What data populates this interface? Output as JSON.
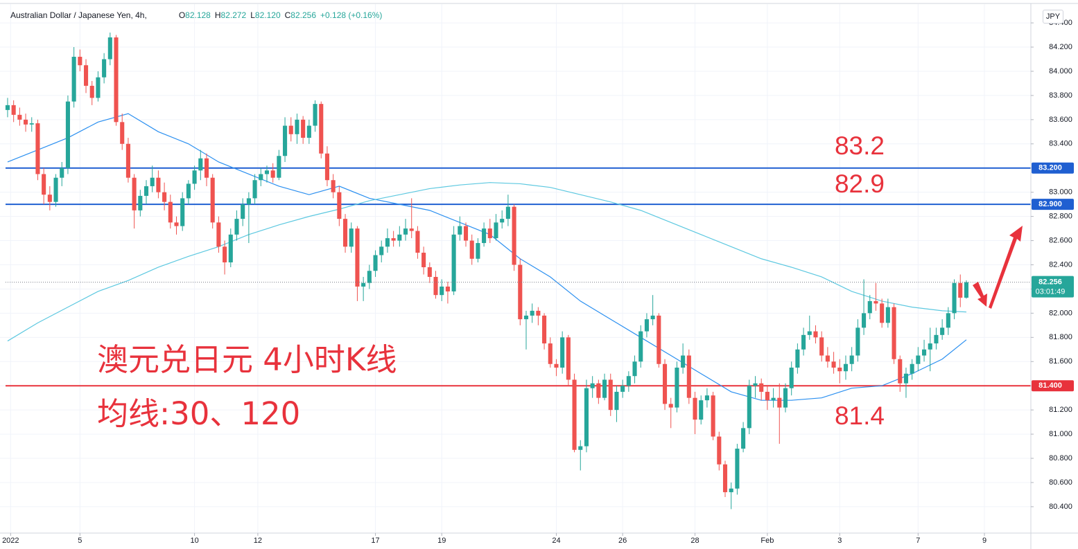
{
  "chart_data": {
    "type": "candlestick",
    "title": "Australian Dollar / Japanese Yen, 4h,",
    "ohlc_legend": [
      {
        "key": "O",
        "value": "82.128"
      },
      {
        "key": "H",
        "value": "82.272"
      },
      {
        "key": "L",
        "value": "82.120"
      },
      {
        "key": "C",
        "value": "82.256"
      }
    ],
    "change_label": "+0.128 (+0.16%)",
    "currency": "JPY",
    "up_color": "#26a69a",
    "down_color": "#ef5350",
    "ylim": [
      80.182,
      84.555
    ],
    "yticks": [
      {
        "value": 80.4,
        "label": "80.400"
      },
      {
        "value": 80.6,
        "label": "80.600"
      },
      {
        "value": 80.8,
        "label": "80.800"
      },
      {
        "value": 81.0,
        "label": "81.000"
      },
      {
        "value": 81.2,
        "label": "81.200"
      },
      {
        "value": 81.4,
        "label": "81.400"
      },
      {
        "value": 81.6,
        "label": "81.600"
      },
      {
        "value": 81.8,
        "label": "81.800"
      },
      {
        "value": 82.0,
        "label": "82.000"
      },
      {
        "value": 82.2,
        "label": "82.200"
      },
      {
        "value": 82.4,
        "label": "82.400"
      },
      {
        "value": 82.6,
        "label": "82.600"
      },
      {
        "value": 82.8,
        "label": "82.800"
      },
      {
        "value": 83.0,
        "label": "83.000"
      },
      {
        "value": 83.2,
        "label": "83.200"
      },
      {
        "value": 83.4,
        "label": "83.400"
      },
      {
        "value": 83.6,
        "label": "83.600"
      },
      {
        "value": 83.8,
        "label": "83.800"
      },
      {
        "value": 84.0,
        "label": "84.000"
      },
      {
        "value": 84.2,
        "label": "84.200"
      },
      {
        "value": 84.4,
        "label": "84.400"
      }
    ],
    "xlim": [
      -1.26,
      169.7
    ],
    "xticks": [
      {
        "value": 0.5,
        "label": "2022"
      },
      {
        "value": 12,
        "label": "5"
      },
      {
        "value": 31,
        "label": "10"
      },
      {
        "value": 41.5,
        "label": "12"
      },
      {
        "value": 61,
        "label": "17"
      },
      {
        "value": 72,
        "label": "19"
      },
      {
        "value": 91,
        "label": "24"
      },
      {
        "value": 102,
        "label": "26"
      },
      {
        "value": 114,
        "label": "28"
      },
      {
        "value": 126,
        "label": "Feb"
      },
      {
        "value": 138,
        "label": "3"
      },
      {
        "value": 151,
        "label": "7"
      },
      {
        "value": 162,
        "label": "9"
      }
    ],
    "grid": true,
    "ohlc": [
      [
        83.68,
        83.78,
        83.62,
        83.72
      ],
      [
        83.72,
        83.76,
        83.58,
        83.64
      ],
      [
        83.64,
        83.7,
        83.55,
        83.6
      ],
      [
        83.6,
        83.65,
        83.5,
        83.56
      ],
      [
        83.56,
        83.62,
        83.5,
        83.57
      ],
      [
        83.57,
        83.6,
        83.1,
        83.15
      ],
      [
        83.15,
        83.2,
        82.9,
        82.98
      ],
      [
        82.98,
        83.05,
        82.85,
        82.92
      ],
      [
        82.92,
        83.15,
        82.88,
        83.12
      ],
      [
        83.12,
        83.25,
        83.05,
        83.2
      ],
      [
        83.2,
        83.8,
        83.15,
        83.75
      ],
      [
        83.75,
        84.2,
        83.7,
        84.12
      ],
      [
        84.12,
        84.18,
        84.0,
        84.05
      ],
      [
        84.05,
        84.1,
        83.82,
        83.88
      ],
      [
        83.88,
        83.92,
        83.72,
        83.78
      ],
      [
        83.78,
        84.0,
        83.75,
        83.95
      ],
      [
        83.95,
        84.15,
        83.9,
        84.1
      ],
      [
        84.1,
        84.32,
        84.05,
        84.28
      ],
      [
        84.28,
        84.3,
        83.55,
        83.58
      ],
      [
        83.58,
        83.65,
        83.35,
        83.4
      ],
      [
        83.4,
        83.45,
        83.08,
        83.12
      ],
      [
        83.12,
        83.15,
        82.7,
        82.85
      ],
      [
        82.85,
        83.02,
        82.8,
        82.97
      ],
      [
        82.97,
        83.1,
        82.9,
        83.05
      ],
      [
        83.05,
        83.22,
        83.0,
        83.12
      ],
      [
        83.12,
        83.18,
        82.95,
        83.0
      ],
      [
        83.0,
        83.08,
        82.85,
        82.92
      ],
      [
        82.92,
        82.98,
        82.7,
        82.75
      ],
      [
        82.75,
        82.8,
        82.65,
        82.72
      ],
      [
        82.72,
        83.0,
        82.68,
        82.95
      ],
      [
        82.95,
        83.1,
        82.9,
        83.07
      ],
      [
        83.07,
        83.22,
        83.02,
        83.18
      ],
      [
        83.18,
        83.35,
        83.1,
        83.28
      ],
      [
        83.28,
        83.32,
        83.05,
        83.12
      ],
      [
        83.12,
        83.15,
        82.7,
        82.75
      ],
      [
        82.75,
        82.8,
        82.5,
        82.55
      ],
      [
        82.55,
        82.6,
        82.32,
        82.42
      ],
      [
        82.42,
        82.7,
        82.38,
        82.65
      ],
      [
        82.65,
        82.85,
        82.6,
        82.78
      ],
      [
        82.78,
        82.95,
        82.72,
        82.9
      ],
      [
        82.9,
        83.0,
        82.58,
        82.95
      ],
      [
        82.95,
        83.15,
        82.9,
        83.1
      ],
      [
        83.1,
        83.2,
        83.05,
        83.15
      ],
      [
        83.15,
        83.22,
        83.08,
        83.18
      ],
      [
        83.18,
        83.24,
        83.08,
        83.12
      ],
      [
        83.12,
        83.35,
        83.1,
        83.3
      ],
      [
        83.3,
        83.62,
        83.25,
        83.55
      ],
      [
        83.55,
        83.62,
        83.42,
        83.48
      ],
      [
        83.48,
        83.65,
        83.4,
        83.6
      ],
      [
        83.6,
        83.63,
        83.4,
        83.45
      ],
      [
        83.45,
        83.6,
        83.4,
        83.55
      ],
      [
        83.55,
        83.76,
        83.5,
        83.73
      ],
      [
        83.73,
        83.75,
        83.28,
        83.32
      ],
      [
        83.32,
        83.38,
        83.05,
        83.1
      ],
      [
        83.1,
        83.15,
        82.95,
        83.0
      ],
      [
        83.0,
        83.05,
        82.72,
        82.78
      ],
      [
        82.78,
        82.82,
        82.5,
        82.55
      ],
      [
        82.55,
        82.75,
        82.5,
        82.7
      ],
      [
        82.7,
        82.72,
        82.1,
        82.22
      ],
      [
        82.22,
        82.3,
        82.1,
        82.25
      ],
      [
        82.25,
        82.4,
        82.2,
        82.35
      ],
      [
        82.35,
        82.52,
        82.3,
        82.48
      ],
      [
        82.48,
        82.6,
        82.42,
        82.55
      ],
      [
        82.55,
        82.7,
        82.5,
        82.62
      ],
      [
        82.62,
        82.68,
        82.55,
        82.6
      ],
      [
        82.6,
        82.72,
        82.55,
        82.65
      ],
      [
        82.65,
        82.78,
        82.6,
        82.7
      ],
      [
        82.7,
        82.95,
        82.62,
        82.68
      ],
      [
        82.68,
        82.72,
        82.45,
        82.5
      ],
      [
        82.5,
        82.55,
        82.32,
        82.38
      ],
      [
        82.38,
        82.42,
        82.25,
        82.3
      ],
      [
        82.3,
        82.35,
        82.12,
        82.15
      ],
      [
        82.15,
        82.28,
        82.1,
        82.22
      ],
      [
        82.22,
        82.26,
        82.08,
        82.18
      ],
      [
        82.18,
        82.72,
        82.15,
        82.65
      ],
      [
        82.65,
        82.8,
        82.6,
        82.72
      ],
      [
        82.72,
        82.75,
        82.55,
        82.6
      ],
      [
        82.6,
        82.65,
        82.4,
        82.45
      ],
      [
        82.45,
        82.62,
        82.42,
        82.58
      ],
      [
        82.58,
        82.75,
        82.55,
        82.7
      ],
      [
        82.7,
        82.78,
        82.58,
        82.62
      ],
      [
        82.62,
        82.82,
        82.6,
        82.75
      ],
      [
        82.75,
        82.85,
        82.7,
        82.78
      ],
      [
        82.78,
        82.98,
        82.72,
        82.88
      ],
      [
        82.88,
        82.9,
        82.35,
        82.4
      ],
      [
        82.4,
        82.45,
        81.9,
        81.95
      ],
      [
        81.95,
        82.02,
        81.7,
        81.98
      ],
      [
        81.98,
        82.08,
        81.92,
        82.02
      ],
      [
        82.02,
        82.05,
        81.9,
        81.98
      ],
      [
        81.98,
        82.0,
        81.7,
        81.75
      ],
      [
        81.75,
        81.8,
        81.55,
        81.58
      ],
      [
        81.58,
        81.62,
        81.48,
        81.55
      ],
      [
        81.55,
        81.85,
        81.5,
        81.8
      ],
      [
        81.8,
        81.82,
        81.4,
        81.45
      ],
      [
        81.45,
        81.5,
        80.85,
        80.87
      ],
      [
        80.87,
        80.95,
        80.7,
        80.9
      ],
      [
        80.9,
        81.45,
        80.85,
        81.38
      ],
      [
        81.38,
        81.48,
        81.3,
        81.42
      ],
      [
        81.42,
        81.45,
        81.25,
        81.3
      ],
      [
        81.3,
        81.5,
        81.28,
        81.45
      ],
      [
        81.45,
        81.5,
        81.15,
        81.2
      ],
      [
        81.2,
        81.4,
        81.1,
        81.35
      ],
      [
        81.35,
        81.45,
        81.3,
        81.4
      ],
      [
        81.4,
        81.52,
        81.35,
        81.48
      ],
      [
        81.48,
        81.65,
        81.42,
        81.6
      ],
      [
        81.6,
        81.9,
        81.55,
        81.85
      ],
      [
        81.85,
        82.0,
        81.8,
        81.95
      ],
      [
        81.95,
        82.15,
        81.9,
        81.98
      ],
      [
        81.98,
        82.0,
        81.55,
        81.58
      ],
      [
        81.58,
        81.62,
        81.2,
        81.25
      ],
      [
        81.25,
        81.3,
        81.05,
        81.22
      ],
      [
        81.22,
        81.6,
        81.18,
        81.55
      ],
      [
        81.55,
        81.75,
        81.5,
        81.65
      ],
      [
        81.65,
        81.7,
        81.25,
        81.3
      ],
      [
        81.3,
        81.35,
        81.0,
        81.12
      ],
      [
        81.12,
        81.32,
        81.08,
        81.28
      ],
      [
        81.28,
        81.38,
        81.22,
        81.32
      ],
      [
        81.32,
        81.35,
        80.95,
        80.98
      ],
      [
        80.98,
        81.02,
        80.7,
        80.75
      ],
      [
        80.75,
        80.78,
        80.48,
        80.52
      ],
      [
        80.52,
        80.6,
        80.38,
        80.55
      ],
      [
        80.55,
        80.92,
        80.5,
        80.88
      ],
      [
        80.88,
        81.1,
        80.85,
        81.05
      ],
      [
        81.05,
        81.45,
        81.0,
        81.4
      ],
      [
        81.4,
        81.48,
        81.3,
        81.42
      ],
      [
        81.42,
        81.46,
        81.28,
        81.35
      ],
      [
        81.35,
        81.4,
        81.2,
        81.28
      ],
      [
        81.28,
        81.38,
        81.22,
        81.3
      ],
      [
        81.3,
        81.42,
        80.92,
        81.22
      ],
      [
        81.22,
        81.42,
        81.18,
        81.38
      ],
      [
        81.38,
        81.6,
        81.32,
        81.55
      ],
      [
        81.55,
        81.75,
        81.5,
        81.7
      ],
      [
        81.7,
        81.88,
        81.65,
        81.82
      ],
      [
        81.82,
        81.98,
        81.78,
        81.85
      ],
      [
        81.85,
        81.9,
        81.75,
        81.8
      ],
      [
        81.8,
        81.85,
        81.6,
        81.65
      ],
      [
        81.65,
        81.72,
        81.55,
        81.6
      ],
      [
        81.6,
        81.68,
        81.5,
        81.55
      ],
      [
        81.55,
        81.62,
        81.42,
        81.52
      ],
      [
        81.52,
        81.65,
        81.45,
        81.58
      ],
      [
        81.58,
        81.72,
        81.52,
        81.65
      ],
      [
        81.65,
        81.95,
        81.6,
        81.88
      ],
      [
        81.88,
        82.28,
        81.82,
        82.0
      ],
      [
        82.0,
        82.15,
        81.95,
        82.1
      ],
      [
        82.1,
        82.25,
        82.02,
        82.08
      ],
      [
        82.08,
        82.12,
        81.88,
        81.92
      ],
      [
        81.92,
        82.12,
        81.88,
        82.05
      ],
      [
        82.05,
        82.08,
        81.58,
        81.62
      ],
      [
        81.62,
        81.65,
        81.35,
        81.42
      ],
      [
        81.42,
        81.55,
        81.3,
        81.5
      ],
      [
        81.5,
        81.62,
        81.45,
        81.58
      ],
      [
        81.58,
        81.72,
        81.52,
        81.65
      ],
      [
        81.65,
        81.78,
        81.6,
        81.7
      ],
      [
        81.7,
        81.88,
        81.52,
        81.75
      ],
      [
        81.75,
        81.88,
        81.7,
        81.82
      ],
      [
        81.82,
        81.95,
        81.78,
        81.88
      ],
      [
        81.88,
        82.05,
        81.82,
        82.0
      ],
      [
        82.0,
        82.28,
        81.95,
        82.25
      ],
      [
        82.25,
        82.32,
        82.05,
        82.128
      ],
      [
        82.128,
        82.272,
        82.12,
        82.256
      ]
    ],
    "moving_averages": [
      {
        "color": "#2a8ff0",
        "x": [
          0,
          5,
          10,
          15,
          20,
          25,
          30,
          35,
          40,
          45,
          50,
          55,
          60,
          65,
          70,
          75,
          80,
          85,
          90,
          95,
          100,
          105,
          110,
          115,
          120,
          125,
          130,
          135,
          140,
          145,
          150,
          155,
          159
        ],
        "values": [
          83.25,
          83.35,
          83.45,
          83.58,
          83.65,
          83.5,
          83.4,
          83.25,
          83.15,
          83.05,
          82.98,
          83.05,
          82.95,
          82.9,
          82.85,
          82.75,
          82.65,
          82.45,
          82.3,
          82.1,
          81.95,
          81.8,
          81.65,
          81.5,
          81.35,
          81.28,
          81.28,
          81.3,
          81.38,
          81.4,
          81.5,
          81.62,
          81.78
        ]
      },
      {
        "color": "#5cc8e0",
        "x": [
          0,
          5,
          10,
          15,
          20,
          25,
          30,
          35,
          40,
          45,
          50,
          55,
          60,
          65,
          70,
          75,
          80,
          85,
          90,
          95,
          100,
          105,
          110,
          115,
          120,
          125,
          130,
          135,
          140,
          145,
          150,
          155,
          159
        ],
        "values": [
          81.77,
          81.92,
          82.05,
          82.18,
          82.27,
          82.38,
          82.47,
          82.55,
          82.65,
          82.73,
          82.8,
          82.86,
          82.93,
          82.98,
          83.03,
          83.06,
          83.08,
          83.07,
          83.04,
          82.98,
          82.92,
          82.85,
          82.75,
          82.65,
          82.55,
          82.45,
          82.38,
          82.3,
          82.18,
          82.1,
          82.05,
          82.02,
          82.01
        ]
      }
    ],
    "levels": [
      {
        "value": 83.2,
        "label": "83.2",
        "axis_label": "83.200",
        "color": "#1f5fd1"
      },
      {
        "value": 82.9,
        "label": "82.9",
        "axis_label": "82.900",
        "color": "#1f5fd1"
      },
      {
        "value": 81.4,
        "label": "81.4",
        "axis_label": "81.400",
        "color": "#e8323c"
      }
    ],
    "current_price": {
      "value": 82.256,
      "label": "82.256",
      "countdown": "03:01:49",
      "color": "#26a69a"
    },
    "annotations": [
      "澳元兑日元 4小时K线",
      "均线:30、120"
    ],
    "annotation_color": "#e8323c"
  }
}
